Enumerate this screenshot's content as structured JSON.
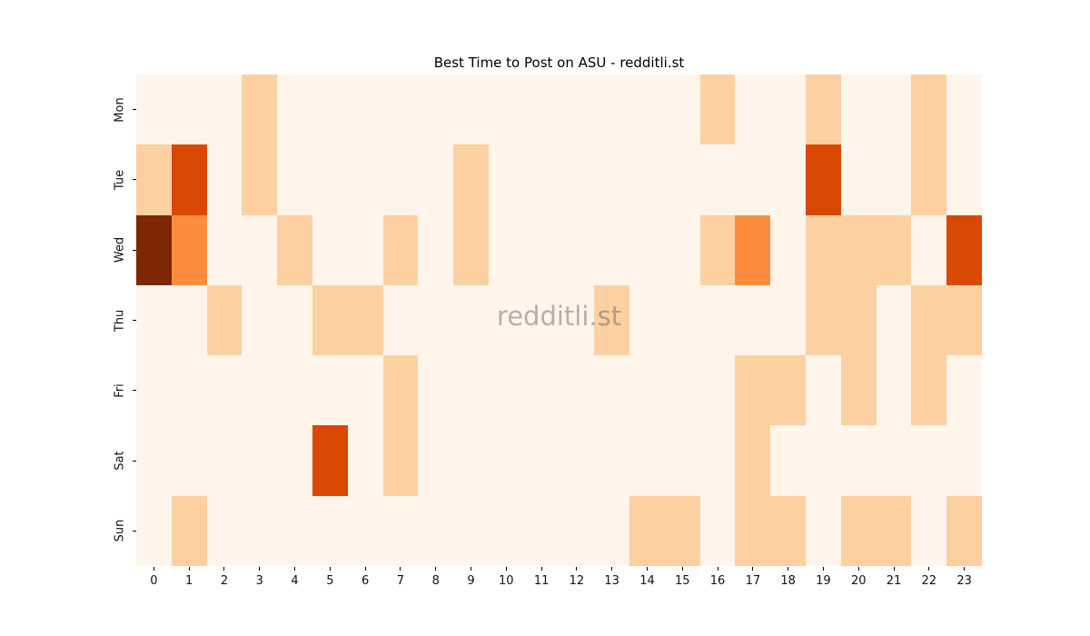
{
  "title": "Best Time to Post on ASU - redditli.st",
  "watermark": "redditli.st",
  "chart_data": {
    "type": "heatmap",
    "title": "Best Time to Post on ASU - redditli.st",
    "xlabel": "",
    "ylabel": "",
    "x_labels": [
      "0",
      "1",
      "2",
      "3",
      "4",
      "5",
      "6",
      "7",
      "8",
      "9",
      "10",
      "11",
      "12",
      "13",
      "14",
      "15",
      "16",
      "17",
      "18",
      "19",
      "20",
      "21",
      "22",
      "23"
    ],
    "y_labels": [
      "Mon",
      "Tue",
      "Wed",
      "Thu",
      "Fri",
      "Sat",
      "Sun"
    ],
    "colormap": "Oranges",
    "value_range": [
      0,
      4
    ],
    "value_colors": {
      "0": "#fff5eb",
      "1": "#fdd0a2",
      "2": "#fd8d3c",
      "3": "#d94801",
      "4": "#7f2704"
    },
    "grid": false,
    "legend": "none",
    "values": [
      [
        0,
        0,
        0,
        1,
        0,
        0,
        0,
        0,
        0,
        0,
        0,
        0,
        0,
        0,
        0,
        0,
        1,
        0,
        0,
        1,
        0,
        0,
        1,
        0
      ],
      [
        1,
        3,
        0,
        1,
        0,
        0,
        0,
        0,
        0,
        1,
        0,
        0,
        0,
        0,
        0,
        0,
        0,
        0,
        0,
        3,
        0,
        0,
        1,
        0
      ],
      [
        4,
        2,
        0,
        0,
        1,
        0,
        0,
        1,
        0,
        1,
        0,
        0,
        0,
        0,
        0,
        0,
        1,
        2,
        0,
        1,
        1,
        1,
        0,
        3
      ],
      [
        0,
        0,
        1,
        0,
        0,
        1,
        1,
        0,
        0,
        0,
        0,
        0,
        0,
        1,
        0,
        0,
        0,
        0,
        0,
        1,
        1,
        0,
        1,
        1
      ],
      [
        0,
        0,
        0,
        0,
        0,
        0,
        0,
        1,
        0,
        0,
        0,
        0,
        0,
        0,
        0,
        0,
        0,
        1,
        1,
        0,
        1,
        0,
        1,
        0
      ],
      [
        0,
        0,
        0,
        0,
        0,
        3,
        0,
        1,
        0,
        0,
        0,
        0,
        0,
        0,
        0,
        0,
        0,
        1,
        0,
        0,
        0,
        0,
        0,
        0
      ],
      [
        0,
        1,
        0,
        0,
        0,
        0,
        0,
        0,
        0,
        0,
        0,
        0,
        0,
        0,
        1,
        1,
        0,
        1,
        1,
        0,
        1,
        1,
        0,
        1
      ]
    ]
  }
}
